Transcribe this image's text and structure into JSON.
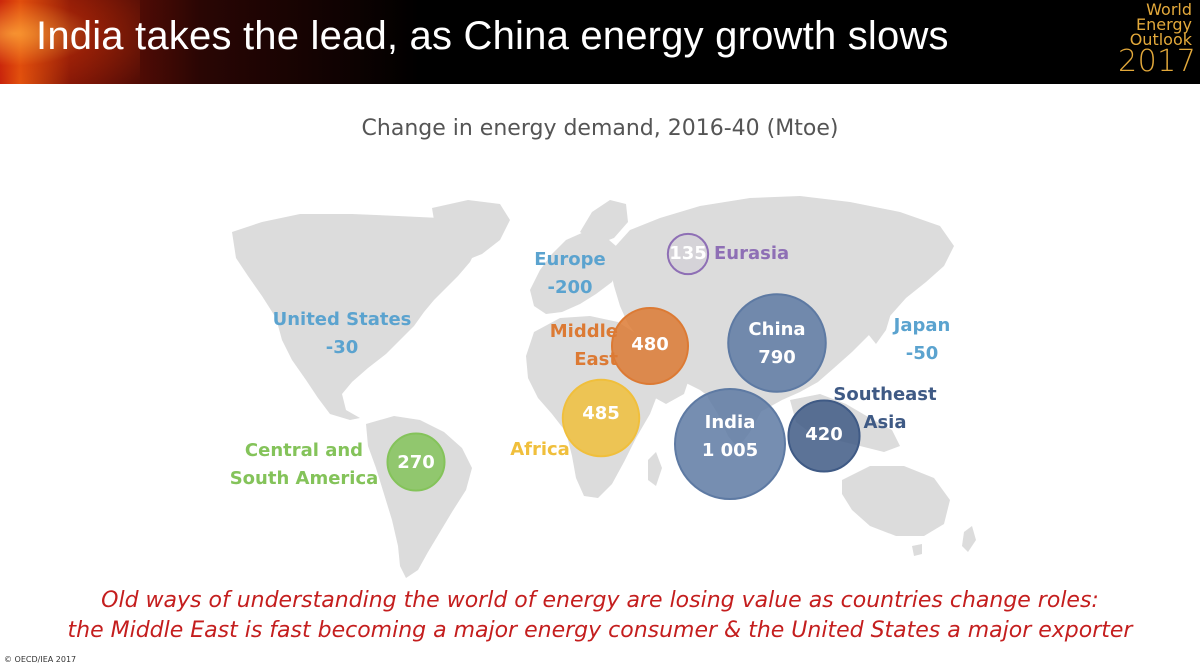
{
  "header": {
    "title": "India takes the lead, as China energy growth slows",
    "logo": {
      "line1": "World",
      "line2": "Energy",
      "line3": "Outlook",
      "year": "2017",
      "color": "#e3a93b"
    }
  },
  "chart_title": "Change in energy demand, 2016-40 (Mtoe)",
  "regions": [
    {
      "id": "united-states",
      "label_lines": [
        "United States",
        "-30"
      ],
      "value": -30,
      "color": "#5ba3cf"
    },
    {
      "id": "europe",
      "label_lines": [
        "Europe",
        "-200"
      ],
      "value": -200,
      "color": "#5ba3cf"
    },
    {
      "id": "japan",
      "label_lines": [
        "Japan",
        "-50"
      ],
      "value": -50,
      "color": "#5ba3cf"
    },
    {
      "id": "eurasia",
      "label_lines": [
        "Eurasia"
      ],
      "value_text": "135",
      "value": 135,
      "color": "#8e6fb5"
    },
    {
      "id": "middle-east",
      "label_lines": [
        "Middle",
        "East"
      ],
      "value_text": "480",
      "value": 480,
      "color": "#dc7a34"
    },
    {
      "id": "china",
      "label_lines": [
        "China",
        "790"
      ],
      "value": 790,
      "color": "#5e7aa3"
    },
    {
      "id": "africa",
      "label_lines": [
        "Africa"
      ],
      "value_text": "485",
      "value": 485,
      "color": "#f0bf3c"
    },
    {
      "id": "india",
      "label_lines": [
        "India",
        "1 005"
      ],
      "value": 1005,
      "color": "#5e7aa3"
    },
    {
      "id": "southeast-asia",
      "label_lines": [
        "Southeast",
        "Asia"
      ],
      "value_text": "420",
      "value": 420,
      "color": "#3f5a85"
    },
    {
      "id": "central-south-america",
      "label_lines": [
        "Central and",
        "South America"
      ],
      "value_text": "270",
      "value": 270,
      "color": "#84c35a"
    }
  ],
  "footer": {
    "line1": "Old ways of understanding the world of energy are losing value as countries change roles:",
    "line2": "the Middle East is fast becoming a major energy consumer & the United States a major exporter",
    "color": "#c41e1e"
  },
  "copyright": "© OECD/IEA 2017"
}
